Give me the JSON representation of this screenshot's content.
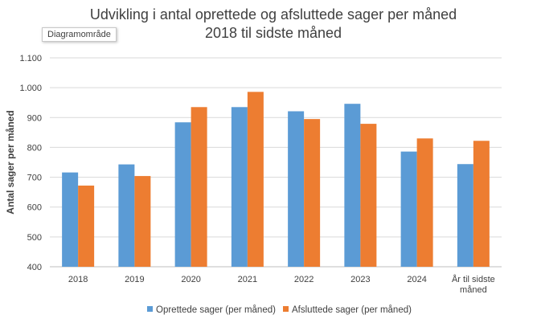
{
  "tooltip": "Diagramområde",
  "chart_data": {
    "type": "bar",
    "title": "Udvikling i antal oprettede og afsluttede sager per måned",
    "subtitle": "2018 til sidste måned",
    "xlabel": "",
    "ylabel": "Antal sager per måned",
    "ylim": [
      400,
      1100
    ],
    "ytick_step": 100,
    "ytick_labels": [
      "400",
      "500",
      "600",
      "700",
      "800",
      "900",
      "1.000",
      "1.100"
    ],
    "grid": true,
    "legend_position": "bottom",
    "categories": [
      [
        "2018"
      ],
      [
        "2019"
      ],
      [
        "2020"
      ],
      [
        "2021"
      ],
      [
        "2022"
      ],
      [
        "2023"
      ],
      [
        "2024"
      ],
      [
        "År til sidste",
        "måned"
      ]
    ],
    "series": [
      {
        "name": "Oprettede sager (per måned)",
        "color": "#5b9bd5",
        "values": [
          716,
          743,
          884,
          935,
          921,
          946,
          786,
          744
        ]
      },
      {
        "name": "Afsluttede sager (per måned)",
        "color": "#ed7d31",
        "values": [
          672,
          704,
          935,
          986,
          895,
          879,
          830,
          822
        ]
      }
    ]
  }
}
